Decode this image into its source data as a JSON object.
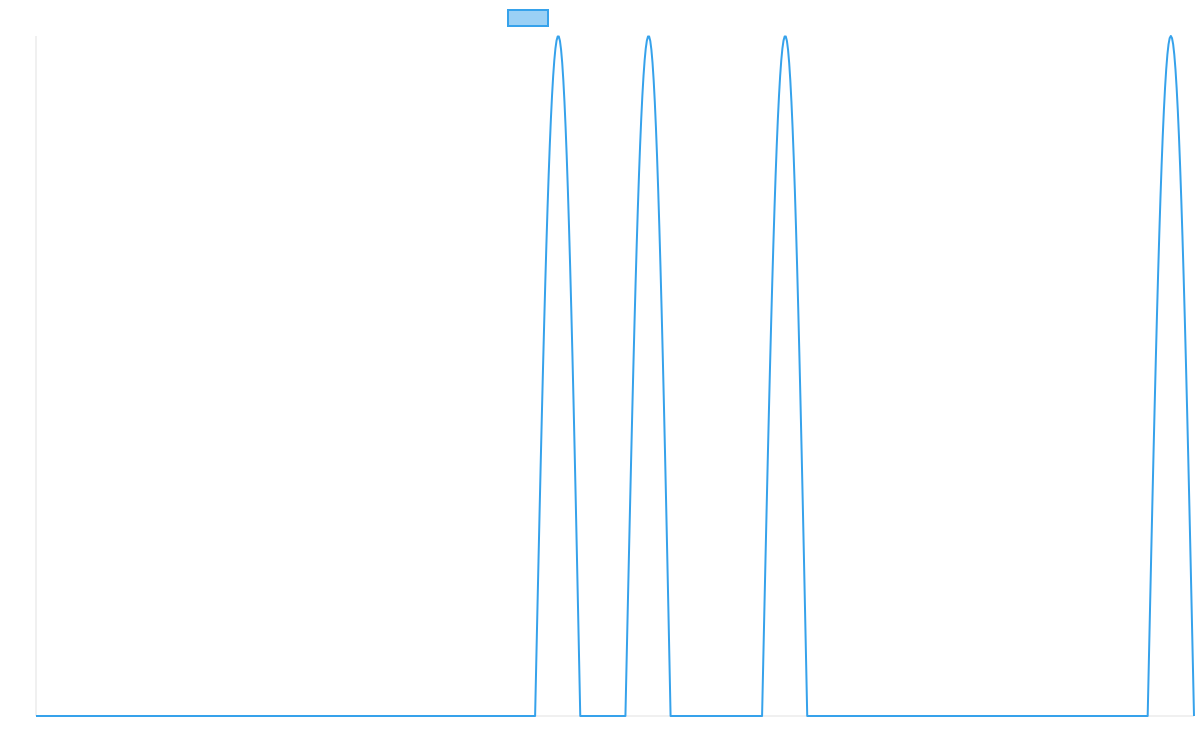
{
  "colors": {
    "series_stroke": "#36a2eb",
    "series_fill": "#9ad0f5",
    "axis": "#e0e0e0",
    "background": "#ffffff"
  },
  "chart_data": {
    "type": "line",
    "grid": false,
    "legend": "top-center",
    "x_range": [
      0,
      1000
    ],
    "ylim": [
      0,
      1
    ],
    "series": [
      {
        "name": "",
        "peaks": [
          {
            "start": 431,
            "center": 451,
            "end": 470
          },
          {
            "start": 509,
            "center": 529,
            "end": 548
          },
          {
            "start": 627,
            "center": 647,
            "end": 666
          },
          {
            "start": 960,
            "center": 980,
            "end": 1000
          }
        ],
        "peak_value": 1,
        "baseline_value": 0
      }
    ]
  }
}
